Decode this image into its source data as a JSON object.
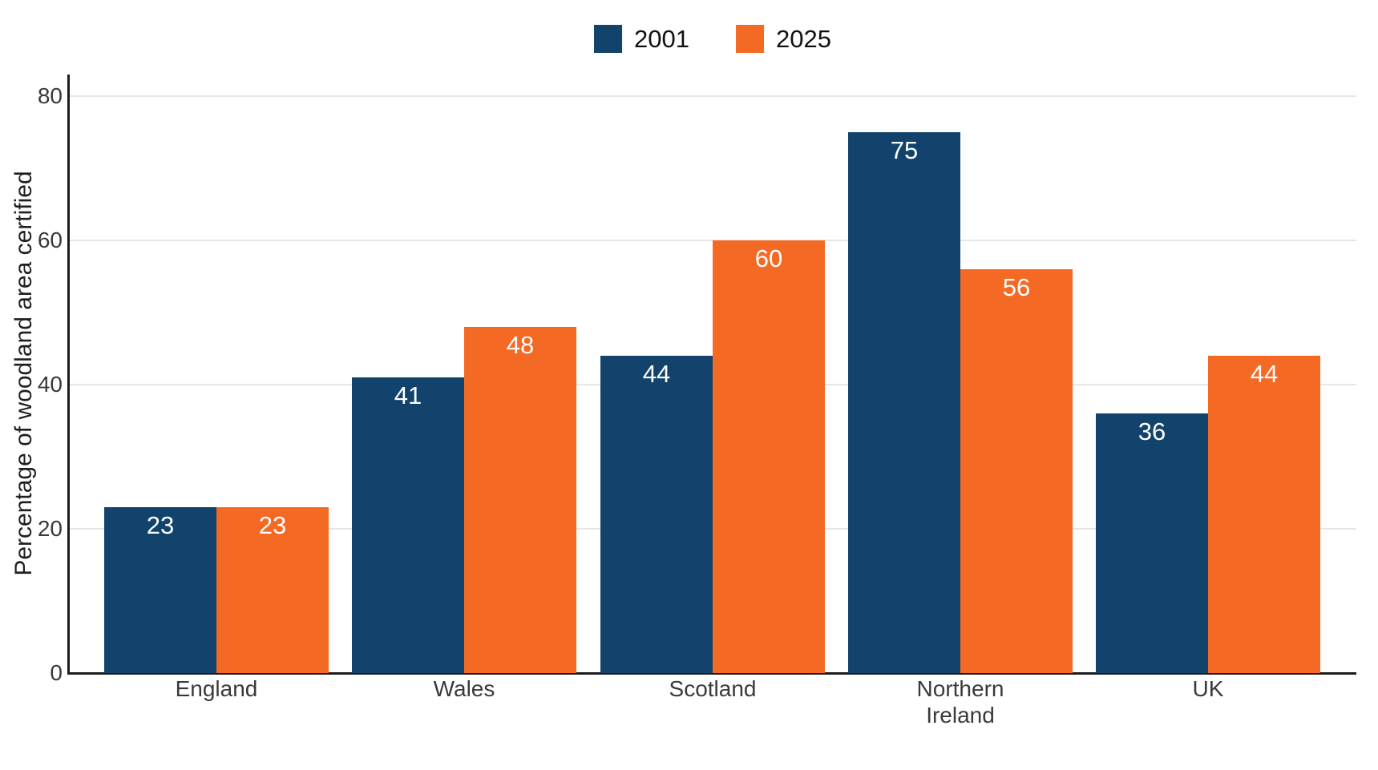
{
  "chart_data": {
    "type": "bar",
    "title": "",
    "categories": [
      "England",
      "Wales",
      "Scotland",
      "Northern\nIreland",
      "UK"
    ],
    "series": [
      {
        "name": "2001",
        "color": "#12436D",
        "values": [
          23,
          41,
          44,
          75,
          36
        ]
      },
      {
        "name": "2025",
        "color": "#F46A25",
        "values": [
          23,
          48,
          60,
          56,
          44
        ]
      }
    ],
    "xlabel": "",
    "ylabel": "Percentage of woodland area certified",
    "yticks": [
      0,
      20,
      40,
      60,
      80
    ],
    "ylim": [
      0,
      83
    ],
    "grid": true,
    "legend_position": "top-center",
    "bar_value_labels": true,
    "colors": {
      "bar_label": "#FFFFFF",
      "axis": "#1c1c1c",
      "grid": "#e6e6e6",
      "tick_label": "#3a3a3a"
    }
  }
}
